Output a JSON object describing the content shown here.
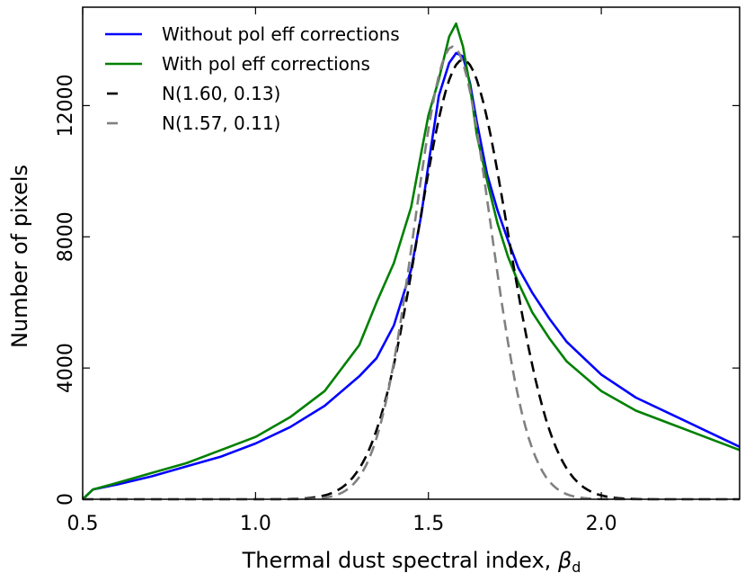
{
  "chart_data": {
    "type": "line",
    "xlabel": "Thermal dust spectral index, ",
    "xlabel_symbol": "β",
    "xlabel_subscript": "d",
    "ylabel": "Number of pixels",
    "xlim": [
      0.5,
      2.4
    ],
    "ylim": [
      0,
      15000
    ],
    "xticks": [
      0.5,
      1.0,
      1.5,
      2.0
    ],
    "xtick_labels": [
      "0.5",
      "1.0",
      "1.5",
      "2.0"
    ],
    "yticks": [
      0,
      4000,
      8000,
      12000
    ],
    "ytick_labels": [
      "0",
      "4000",
      "8000",
      "12000"
    ],
    "legend_position": "top-left",
    "series": [
      {
        "name": "Without pol eff corrections",
        "label": "Without pol eff corrections",
        "color": "#0000ff",
        "dash": "solid",
        "x": [
          0.5,
          0.53,
          0.6,
          0.7,
          0.8,
          0.9,
          1.0,
          1.1,
          1.2,
          1.3,
          1.35,
          1.4,
          1.45,
          1.48,
          1.5,
          1.53,
          1.56,
          1.58,
          1.6,
          1.62,
          1.64,
          1.67,
          1.7,
          1.73,
          1.76,
          1.8,
          1.85,
          1.9,
          2.0,
          2.1,
          2.2,
          2.3,
          2.4
        ],
        "y": [
          0,
          300,
          450,
          700,
          1000,
          1300,
          1700,
          2200,
          2850,
          3750,
          4300,
          5300,
          7000,
          8700,
          10200,
          12300,
          13300,
          13600,
          13500,
          12700,
          11500,
          9900,
          8800,
          7900,
          7050,
          6300,
          5500,
          4800,
          3800,
          3100,
          2600,
          2100,
          1600
        ]
      },
      {
        "name": "With pol eff corrections",
        "label": "With pol eff corrections",
        "color": "#008000",
        "dash": "solid",
        "x": [
          0.5,
          0.53,
          0.6,
          0.7,
          0.8,
          0.9,
          1.0,
          1.1,
          1.2,
          1.3,
          1.35,
          1.4,
          1.45,
          1.48,
          1.5,
          1.53,
          1.56,
          1.58,
          1.6,
          1.62,
          1.64,
          1.67,
          1.7,
          1.73,
          1.76,
          1.8,
          1.85,
          1.9,
          2.0,
          2.1,
          2.2,
          2.3,
          2.4
        ],
        "y": [
          0,
          300,
          500,
          800,
          1100,
          1500,
          1900,
          2500,
          3300,
          4700,
          6000,
          7200,
          8900,
          10600,
          11700,
          12800,
          14100,
          14500,
          13800,
          12600,
          11100,
          9700,
          8400,
          7400,
          6600,
          5700,
          4900,
          4200,
          3300,
          2700,
          2300,
          1900,
          1500
        ]
      },
      {
        "name": "N(1.60, 0.13)",
        "label": "N(1.60, 0.13)",
        "color": "#000000",
        "dash": "dashed",
        "gaussian": {
          "mu": 1.6,
          "sigma": 0.13,
          "amplitude": 13400
        }
      },
      {
        "name": "N(1.57, 0.11)",
        "label": "N(1.57, 0.11)",
        "color": "#808080",
        "dash": "dashed",
        "gaussian": {
          "mu": 1.57,
          "sigma": 0.11,
          "amplitude": 13800
        }
      }
    ]
  }
}
